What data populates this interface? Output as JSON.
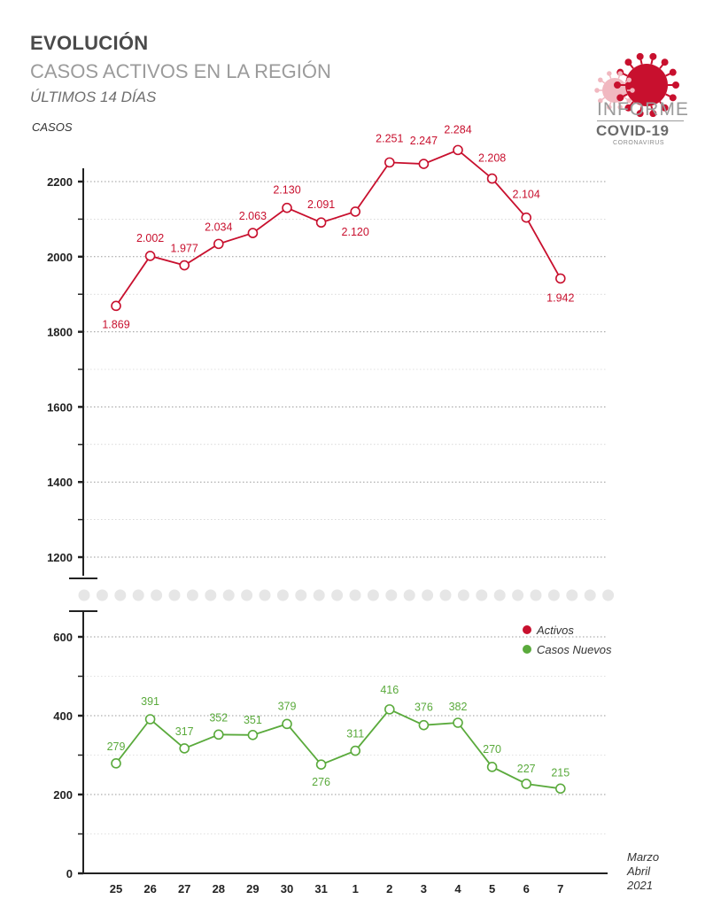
{
  "header": {
    "title": "EVOLUCIÓN",
    "subtitle": "CASOS ACTIVOS EN LA REGIÓN",
    "period": "ÚLTIMOS 14 DÍAS"
  },
  "logo": {
    "line1": "INFORME",
    "line2": "COVID-19",
    "line3": "CORONAVIRUS",
    "icon": "virus-icon"
  },
  "colors": {
    "activos": "#c8102e",
    "nuevos": "#5aaa3c",
    "axis": "#222222",
    "grid": "#9a9a9a",
    "break_dots": "#e6e6e6"
  },
  "chart_data": {
    "type": "line",
    "categories": [
      "25",
      "26",
      "27",
      "28",
      "29",
      "30",
      "31",
      "1",
      "2",
      "3",
      "4",
      "5",
      "6",
      "7"
    ],
    "xlabel_lines": [
      "Marzo",
      "Abril",
      "2021"
    ],
    "ylabel": "CASOS",
    "axis_break": true,
    "upper_axis": {
      "ylim": [
        1150,
        2270
      ],
      "ticks": [
        1200,
        1400,
        1600,
        1800,
        2000,
        2200
      ]
    },
    "lower_axis": {
      "ylim": [
        0,
        650
      ],
      "ticks": [
        0,
        200,
        400,
        600
      ]
    },
    "grid": true,
    "legend_position": "top-right of lower panel",
    "series": [
      {
        "name": "Activos",
        "axis": "upper",
        "values": [
          1869,
          2002,
          1977,
          2034,
          2063,
          2130,
          2091,
          2120,
          2251,
          2247,
          2284,
          2208,
          2104,
          1942
        ],
        "labels": [
          "1.869",
          "2.002",
          "1.977",
          "2.034",
          "2.063",
          "2.130",
          "2.091",
          "2.120",
          "2.251",
          "2.247",
          "2.284",
          "2.208",
          "2.104",
          "1.942"
        ]
      },
      {
        "name": "Casos Nuevos",
        "axis": "lower",
        "values": [
          279,
          391,
          317,
          352,
          351,
          379,
          276,
          311,
          416,
          376,
          382,
          270,
          227,
          215
        ],
        "labels": [
          "279",
          "391",
          "317",
          "352",
          "351",
          "379",
          "276",
          "311",
          "416",
          "376",
          "382",
          "270",
          "227",
          "215"
        ]
      }
    ]
  }
}
